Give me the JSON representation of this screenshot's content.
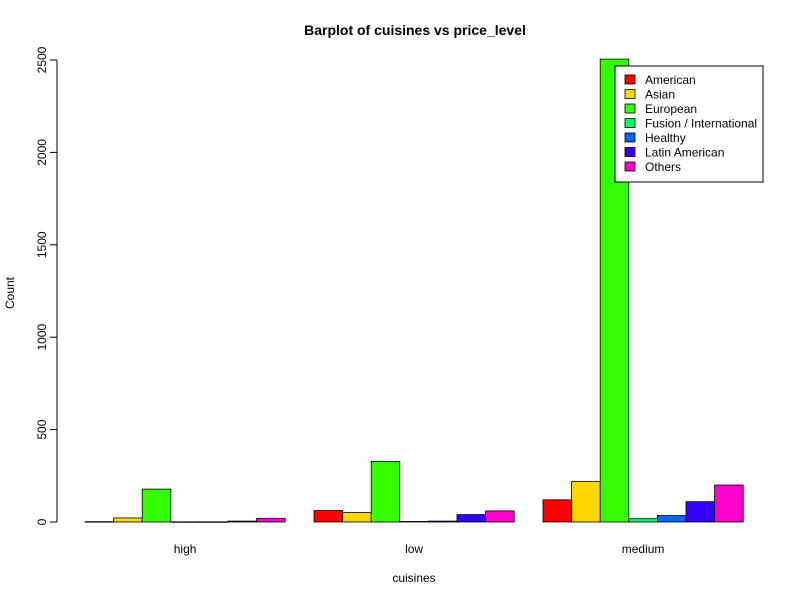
{
  "chart_data": {
    "type": "bar",
    "title": "Barplot of cuisines vs price_level",
    "xlabel": "cuisines",
    "ylabel": "Count",
    "ylim": [
      0,
      2500
    ],
    "yticks": [
      0,
      500,
      1000,
      1500,
      2000,
      2500
    ],
    "categories": [
      "high",
      "low",
      "medium"
    ],
    "legend_position": "top-right",
    "series": [
      {
        "name": "American",
        "color": "#ff0000",
        "values": [
          2,
          62,
          120
        ]
      },
      {
        "name": "Asian",
        "color": "#ffd700",
        "values": [
          22,
          52,
          220
        ]
      },
      {
        "name": "European",
        "color": "#33ff00",
        "values": [
          178,
          328,
          2505
        ]
      },
      {
        "name": "Fusion / International",
        "color": "#00ff66",
        "values": [
          1,
          3,
          18
        ]
      },
      {
        "name": "Healthy",
        "color": "#0066ff",
        "values": [
          1,
          5,
          35
        ]
      },
      {
        "name": "Latin American",
        "color": "#3300ff",
        "values": [
          5,
          40,
          110
        ]
      },
      {
        "name": "Others",
        "color": "#ff00cc",
        "values": [
          20,
          60,
          200
        ]
      }
    ]
  }
}
